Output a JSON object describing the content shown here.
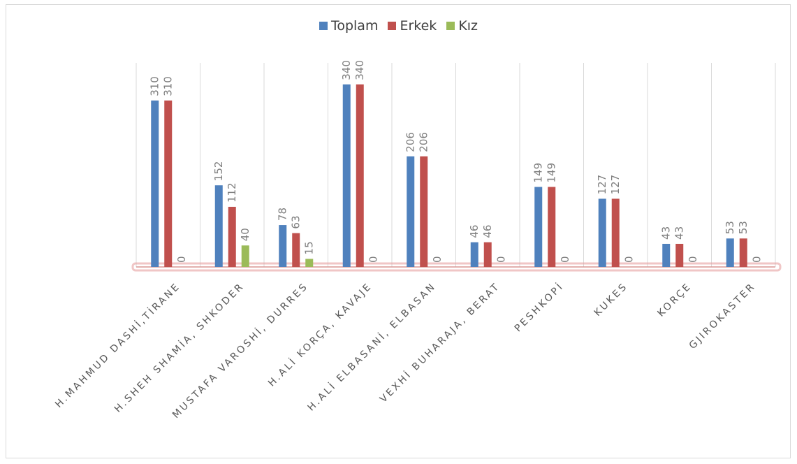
{
  "chart_data": {
    "type": "bar",
    "categories": [
      "H.MAHMUD DASHİ,TİRANE",
      "H.SHEH SHAMİA, SHKODER",
      "MUSTAFA VAROSHİ, DURRES",
      "H.ALİ KORÇA, KAVAJE",
      "H.ALİ ELBASANİ, ELBASAN",
      "VEXHİ BUHARAJA, BERAT",
      "PESHKOPİ",
      "KUKES",
      "KORÇE",
      "GJIROKASTER"
    ],
    "series": [
      {
        "name": "Toplam",
        "color": "#4f81bd",
        "values": [
          310,
          152,
          78,
          340,
          206,
          46,
          149,
          127,
          43,
          53
        ]
      },
      {
        "name": "Erkek",
        "color": "#c0504d",
        "values": [
          310,
          112,
          63,
          340,
          206,
          46,
          149,
          127,
          43,
          53
        ]
      },
      {
        "name": "Kız",
        "color": "#9bbb59",
        "values": [
          0,
          40,
          15,
          0,
          0,
          0,
          0,
          0,
          0,
          0
        ]
      }
    ],
    "ylim": [
      0,
      380
    ],
    "grid": "vertical",
    "legend": "top-center",
    "data_labels": true
  },
  "colors": {
    "highlight": "#e6a0a0",
    "grid": "#d9d9d9"
  }
}
